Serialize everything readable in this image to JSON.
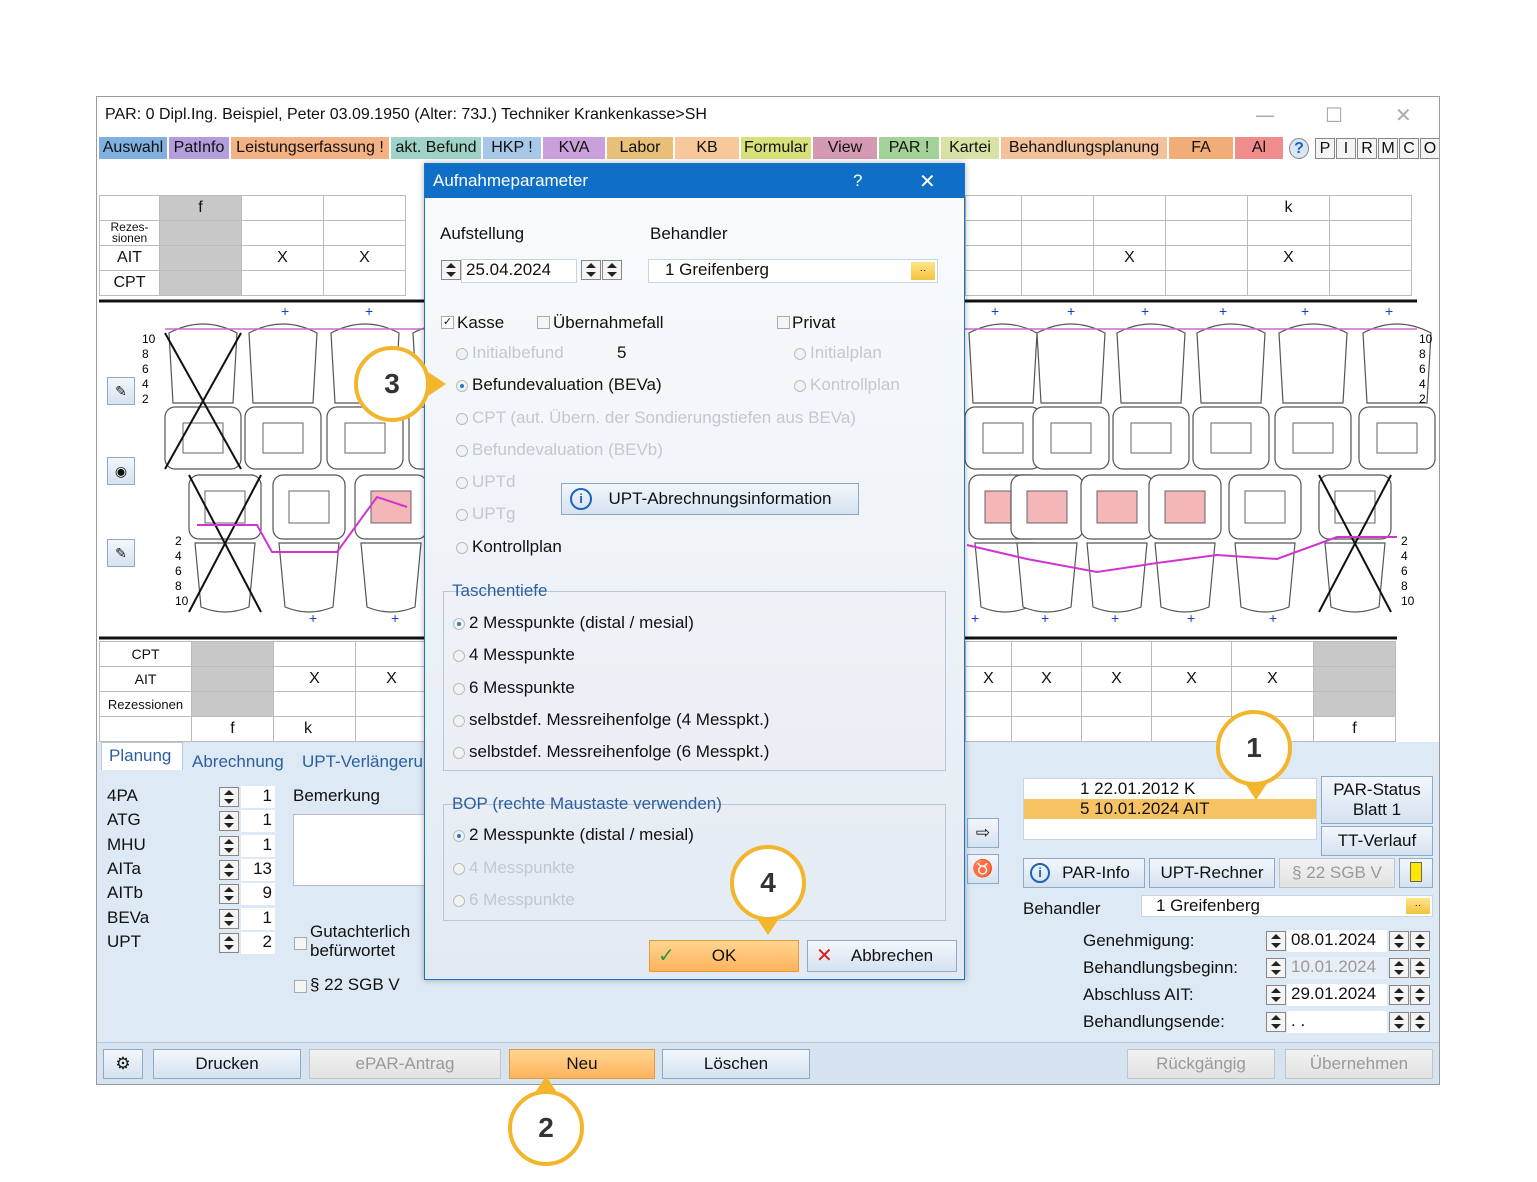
{
  "window": {
    "title": "PAR: 0  Dipl.Ing. Beispiel, Peter  03.09.1950 (Alter: 73J.)  Techniker Krankenkasse>SH",
    "minimize": "—",
    "maximize": "☐",
    "close": "✕"
  },
  "menu_tabs": [
    {
      "label": "Auswahl",
      "color": "#7fb0e0"
    },
    {
      "label": "PatInfo",
      "color": "#b39ddb"
    },
    {
      "label": "Leistungserfassung !",
      "color": "#f4b183"
    },
    {
      "label": "akt. Befund",
      "color": "#9fd3c7"
    },
    {
      "label": "HKP !",
      "color": "#a8c8e8"
    },
    {
      "label": "KVA",
      "color": "#c9a0dc"
    },
    {
      "label": "Labor",
      "color": "#e8c07a"
    },
    {
      "label": "KB",
      "color": "#f7c89a"
    },
    {
      "label": "Formular",
      "color": "#d8e07a"
    },
    {
      "label": "View",
      "color": "#d49ab3"
    },
    {
      "label": "PAR !",
      "color": "#a4d39a"
    },
    {
      "label": "Kartei",
      "color": "#d7e2a4"
    },
    {
      "label": "Behandlungsplanung",
      "color": "#f3c29b"
    },
    {
      "label": "FA",
      "color": "#f0ad78"
    },
    {
      "label": "Al",
      "color": "#f08c8c"
    }
  ],
  "toolbar_letters": [
    "P",
    "I",
    "R",
    "M",
    "C",
    "O"
  ],
  "upper_table": {
    "row_labels": [
      "Rezes- sionen",
      "AIT",
      "CPT"
    ],
    "top_letter_left": "f",
    "top_letter_right": "k",
    "x_mark": "X"
  },
  "lower_table": {
    "row_labels": [
      "CPT",
      "AIT",
      "Rezessionen"
    ],
    "bottom_left": [
      "f",
      "k"
    ],
    "bottom_right": "f",
    "x_mark": "X"
  },
  "chart_axis": [
    "10",
    "8",
    "6",
    "4",
    "2"
  ],
  "bottom_tabs": [
    "Planung",
    "Abrechnung",
    "UPT-Verlängeru"
  ],
  "counters": [
    {
      "name": "4PA",
      "value": "1"
    },
    {
      "name": "ATG",
      "value": "1"
    },
    {
      "name": "MHU",
      "value": "1"
    },
    {
      "name": "AITa",
      "value": "13"
    },
    {
      "name": "AITb",
      "value": "9"
    },
    {
      "name": "BEVa",
      "value": "1"
    },
    {
      "name": "UPT",
      "value": "2"
    }
  ],
  "bemerkung_label": "Bemerkung",
  "gutachterlich_label": "Gutachterlich befürwortet",
  "sgb_label": "§ 22 SGB V",
  "status_list": [
    "1 22.01.2012  K",
    "5 10.01.2024  AIT"
  ],
  "par_status_btn": "PAR-Status Blatt 1",
  "tt_verlauf_btn": "TT-Verlauf",
  "par_info_btn": "PAR-Info",
  "upt_rechner_btn": "UPT-Rechner",
  "sgb_btn": "§ 22 SGB V",
  "behandler_label": "Behandler",
  "behandler_value": "1 Greifenberg",
  "dates": [
    {
      "label": "Genehmigung:",
      "value": "08.01.2024",
      "dim": false
    },
    {
      "label": "Behandlungsbeginn:",
      "value": "10.01.2024",
      "dim": true
    },
    {
      "label": "Abschluss AIT:",
      "value": "29.01.2024",
      "dim": false
    },
    {
      "label": "Behandlungsende:",
      "value": " .  .",
      "dim": false
    }
  ],
  "footer_buttons": {
    "drucken": "Drucken",
    "epar": "ePAR-Antrag",
    "neu": "Neu",
    "loeschen": "Löschen",
    "rueckgaengig": "Rückgängig",
    "uebernehmen": "Übernehmen"
  },
  "dialog": {
    "title": "Aufnahmeparameter",
    "help": "?",
    "close": "✕",
    "aufstellung_label": "Aufstellung",
    "aufstellung_value": "25.04.2024",
    "behandler_label": "Behandler",
    "behandler_value": "1 Greifenberg",
    "kasse": "Kasse",
    "uebernahmefall": "Übernahmefall",
    "privat": "Privat",
    "options_left": [
      {
        "label": "Initialbefund",
        "dim": true,
        "on": false
      },
      {
        "label": "Befundevaluation (BEVa)",
        "dim": false,
        "on": true
      },
      {
        "label": "CPT (aut. Übern. der Sondierungstiefen aus BEVa)",
        "dim": true,
        "on": false
      },
      {
        "label": "Befundevaluation (BEVb)",
        "dim": true,
        "on": false
      },
      {
        "label": "UPTd",
        "dim": true,
        "on": false
      },
      {
        "label": "UPTg",
        "dim": true,
        "on": false
      },
      {
        "label": "Kontrollplan",
        "dim": false,
        "on": false
      }
    ],
    "initialbefund_count": "5",
    "options_right": [
      {
        "label": "Initialplan",
        "dim": true
      },
      {
        "label": "Kontrollplan",
        "dim": true
      }
    ],
    "upt_info_btn": "UPT-Abrechnungsinformation",
    "taschentiefe_label": "Taschentiefe",
    "taschentiefe": [
      {
        "label": "2 Messpunkte (distal / mesial)",
        "on": true,
        "dim": false
      },
      {
        "label": "4 Messpunkte",
        "on": false,
        "dim": false
      },
      {
        "label": "6 Messpunkte",
        "on": false,
        "dim": false
      },
      {
        "label": "selbstdef. Messreihenfolge (4 Messpkt.)",
        "on": false,
        "dim": false
      },
      {
        "label": "selbstdef. Messreihenfolge (6 Messpkt.)",
        "on": false,
        "dim": false
      }
    ],
    "bop_label": "BOP (rechte Maustaste verwenden)",
    "bop": [
      {
        "label": "2 Messpunkte (distal / mesial)",
        "on": true,
        "dim": false
      },
      {
        "label": "4 Messpunkte",
        "on": false,
        "dim": true
      },
      {
        "label": "6 Messpunkte",
        "on": false,
        "dim": true
      }
    ],
    "ok": "OK",
    "cancel": "Abbrechen"
  },
  "callouts": [
    "1",
    "2",
    "3",
    "4"
  ],
  "accent_color": "#f2b52c"
}
